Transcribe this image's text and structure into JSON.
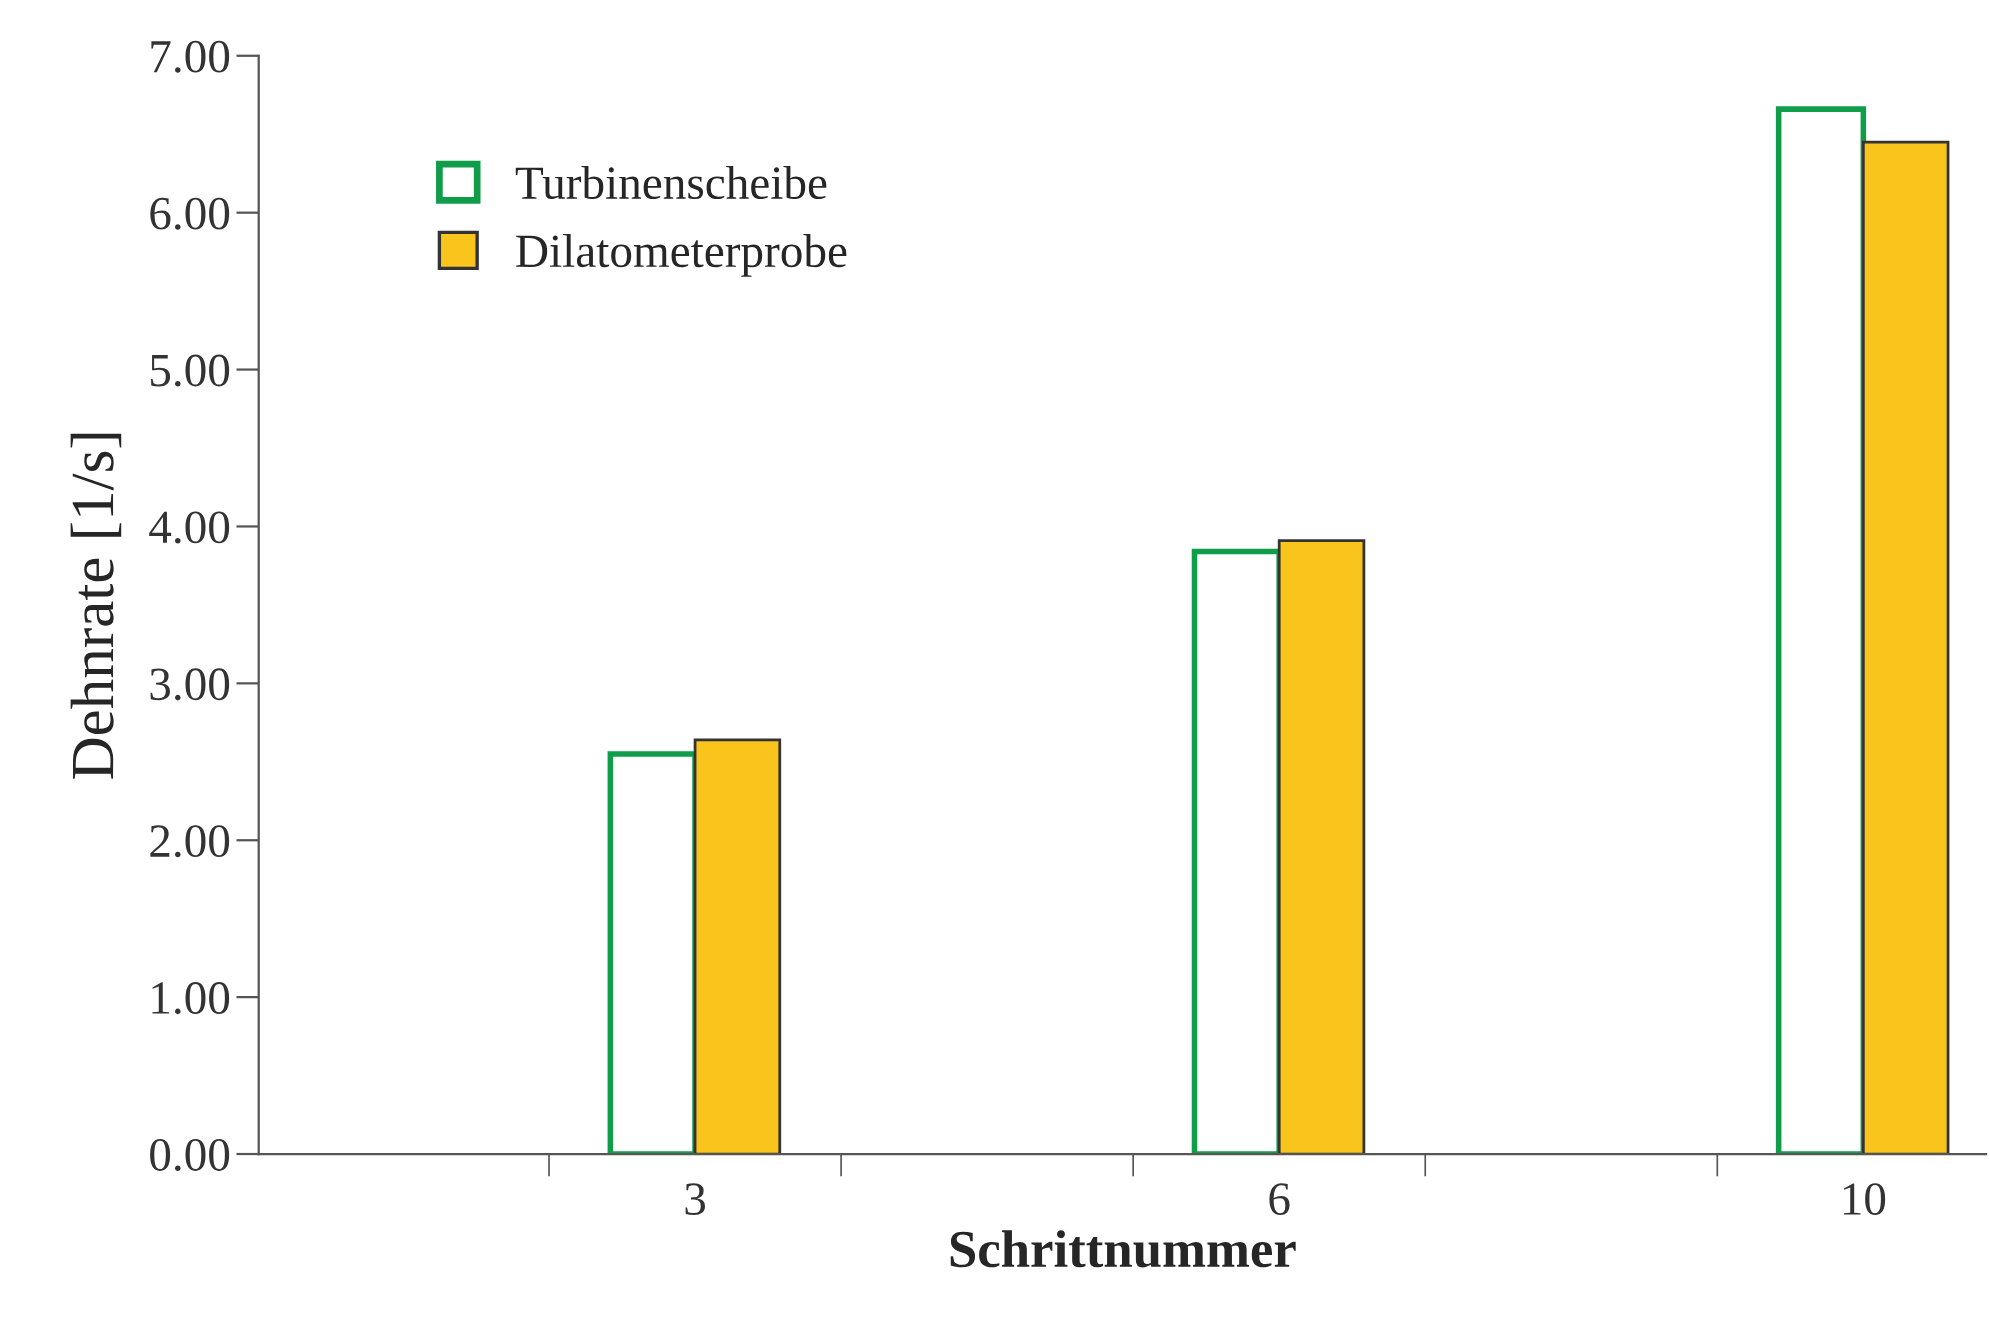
{
  "chart_data": {
    "type": "bar",
    "xlabel": "Schrittnummer",
    "ylabel": "Dehnrate [1/s]",
    "categories": [
      "3",
      "6",
      "10"
    ],
    "series": [
      {
        "name": "Turbinenscheibe",
        "color": "#0f9d4a",
        "values": [
          2.55,
          3.84,
          6.66
        ]
      },
      {
        "name": "Dilatometerprobe",
        "color": "#f9c51c",
        "values": [
          2.64,
          3.91,
          6.45
        ]
      }
    ],
    "ylim": [
      0,
      7
    ],
    "yticks": [
      {
        "value": 0,
        "label": "0.00"
      },
      {
        "value": 1,
        "label": "1.00"
      },
      {
        "value": 2,
        "label": "2.00"
      },
      {
        "value": 3,
        "label": "3.00"
      },
      {
        "value": 4,
        "label": "4.00"
      },
      {
        "value": 5,
        "label": "5.00"
      },
      {
        "value": 6,
        "label": "6.00"
      },
      {
        "value": 7,
        "label": "7.00"
      }
    ],
    "grid": false,
    "legend": "top left"
  }
}
